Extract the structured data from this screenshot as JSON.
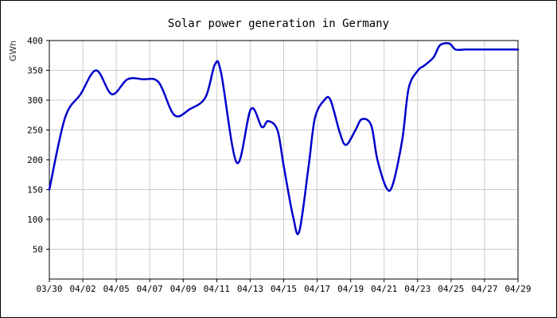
{
  "chart_data": {
    "type": "line",
    "title": "Solar power generation in Germany",
    "xlabel": "",
    "ylabel": "GWh",
    "ylim": [
      0,
      400
    ],
    "yticks": [
      50,
      100,
      150,
      200,
      250,
      300,
      350,
      400
    ],
    "xlim": [
      "03/30",
      "04/29"
    ],
    "xtick_labels": [
      "03/30",
      "04/02",
      "04/05",
      "04/07",
      "04/09",
      "04/11",
      "04/13",
      "04/15",
      "04/17",
      "04/19",
      "04/21",
      "04/23",
      "04/25",
      "04/27",
      "04/29"
    ],
    "grid": true,
    "line_color": "#0000cc",
    "series": [
      {
        "x": [
          0,
          1.0,
          2.0,
          3.0,
          4.0,
          5.0,
          6.0,
          7.0,
          8.0,
          9.0,
          10.0,
          10.6,
          11.0,
          12.0,
          12.9,
          13.6,
          14.0,
          14.6,
          15.0,
          15.6,
          16.0,
          16.6,
          17.0,
          17.6,
          18.0,
          18.6,
          19.0,
          19.6,
          20.0,
          20.6,
          21.0,
          21.6,
          22.0,
          22.6,
          23.0,
          23.6,
          24.0,
          24.6,
          25.0,
          25.6,
          26.0,
          26.6,
          27.0,
          27.6,
          28.0,
          28.6,
          29.0,
          29.6,
          30.0
        ],
        "y": [
          150,
          270,
          310,
          350,
          310,
          335,
          335,
          330,
          275,
          285,
          305,
          360,
          345,
          195,
          285,
          255,
          265,
          250,
          190,
          105,
          80,
          190,
          270,
          300,
          300,
          245,
          225,
          250,
          268,
          258,
          200,
          152,
          160,
          235,
          320,
          350,
          358,
          372,
          392,
          395,
          385,
          385,
          385,
          385,
          385,
          385,
          385,
          385,
          385
        ]
      }
    ]
  }
}
